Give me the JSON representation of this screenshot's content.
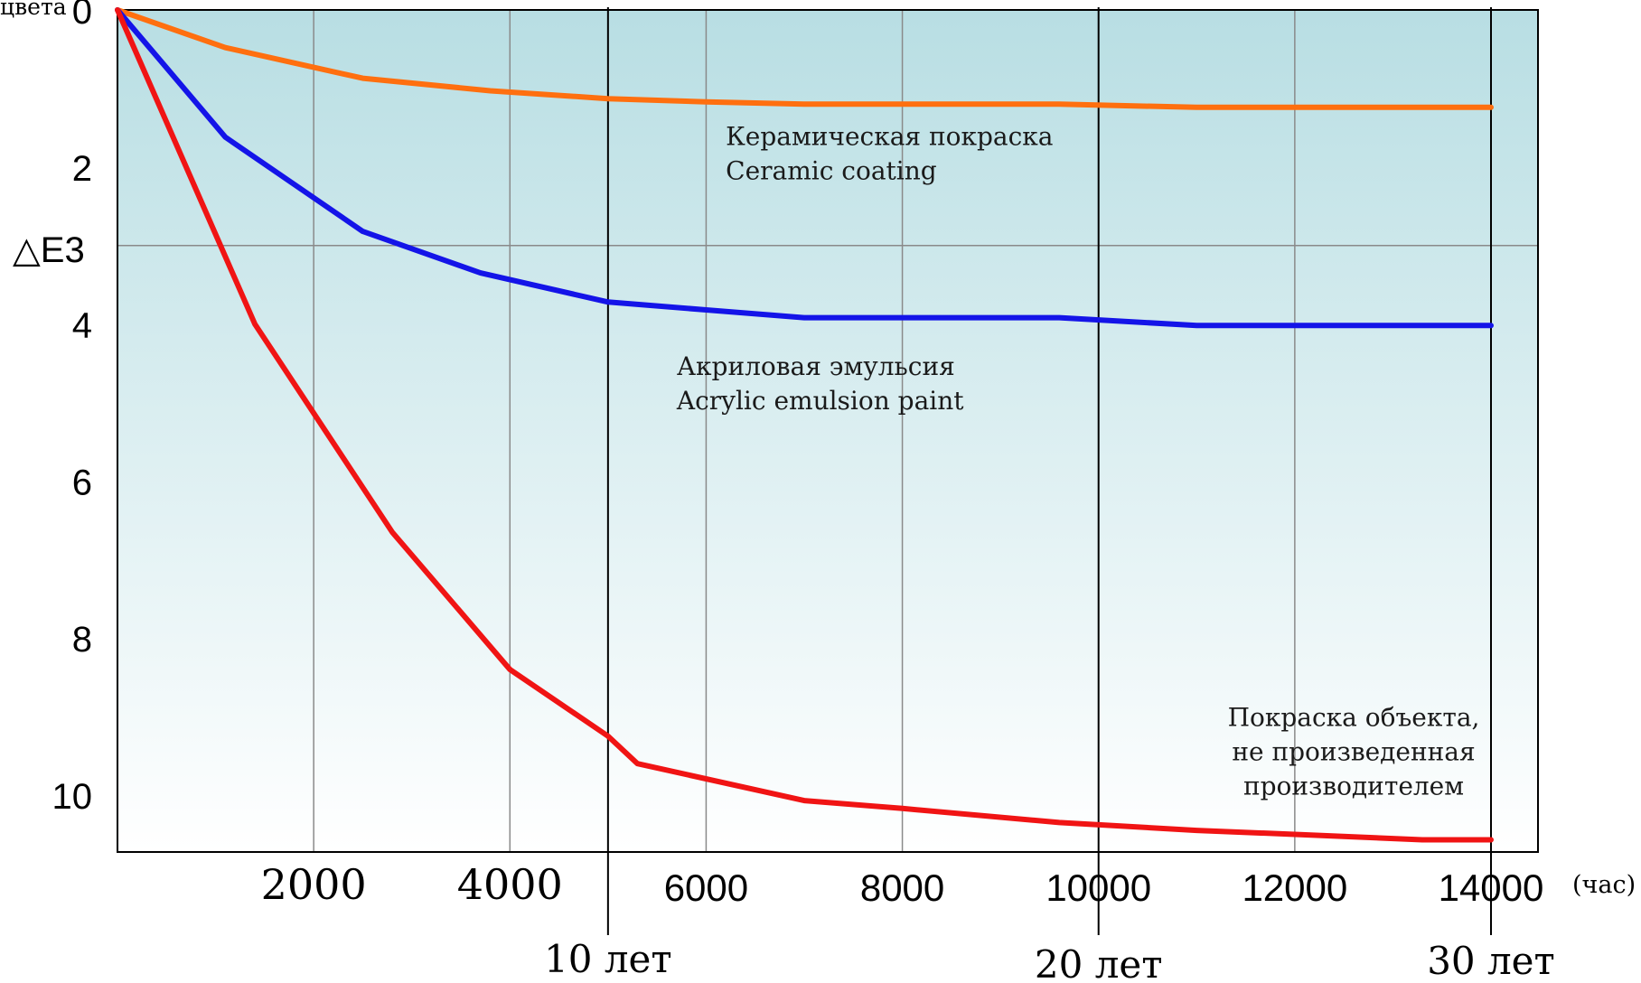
{
  "chart_data": {
    "type": "line",
    "ylabel_top": "цвета",
    "ylabel": "△E3",
    "xunit": "(час)",
    "xlim": [
      0,
      14500
    ],
    "ylim": [
      0,
      10.8
    ],
    "y_inverted": true,
    "grid": true,
    "x_ticks_serif": [
      "2000",
      "4000"
    ],
    "x_ticks_sans": [
      "6000",
      "8000",
      "10000",
      "12000",
      "14000"
    ],
    "x_tick_values_serif": [
      2000,
      4000
    ],
    "x_tick_values_sans": [
      6000,
      8000,
      10000,
      12000,
      14000
    ],
    "y_ticks": [
      "0",
      "2",
      "4",
      "6",
      "8",
      "10"
    ],
    "y_tick_values": [
      0,
      2,
      4,
      6,
      8,
      10
    ],
    "year_markers": [
      {
        "x": 5000,
        "label": "10 лет"
      },
      {
        "x": 10000,
        "label": "20 лет"
      },
      {
        "x": 14000,
        "label": "30 лет"
      }
    ],
    "series": [
      {
        "color": "#ff6f0f",
        "x": [
          0,
          1100,
          2500,
          3800,
          5000,
          6000,
          7000,
          8000,
          9600,
          11000,
          12000,
          14000
        ],
        "y": [
          0,
          0.48,
          0.87,
          1.03,
          1.13,
          1.17,
          1.2,
          1.2,
          1.2,
          1.24,
          1.24,
          1.24
        ]
      },
      {
        "color": "#1414e8",
        "x": [
          0,
          1100,
          2500,
          3700,
          5000,
          6000,
          7000,
          8000,
          9600,
          11000,
          12000,
          14000
        ],
        "y": [
          0,
          1.62,
          2.82,
          3.35,
          3.72,
          3.82,
          3.92,
          3.92,
          3.92,
          4.02,
          4.02,
          4.02
        ]
      },
      {
        "color": "#f01414",
        "x": [
          0,
          1400,
          2800,
          4000,
          5000,
          5300,
          7000,
          8000,
          9600,
          11000,
          12000,
          13300,
          14000
        ],
        "y": [
          0,
          4.0,
          6.65,
          8.4,
          9.25,
          9.6,
          10.07,
          10.17,
          10.35,
          10.45,
          10.5,
          10.57,
          10.57
        ]
      }
    ],
    "annotations": [
      {
        "lines": [
          "Керамическая покраска",
          "Ceramic coating"
        ],
        "x": 6200,
        "y": 1.72
      },
      {
        "lines": [
          "Акриловая эмульсия",
          "Acrylic emulsion paint"
        ],
        "x": 5700,
        "y": 4.65
      },
      {
        "lines": [
          "Покраска объекта,",
          "не произведенная",
          "производителем"
        ],
        "x": 12600,
        "y": 9.12
      }
    ]
  }
}
